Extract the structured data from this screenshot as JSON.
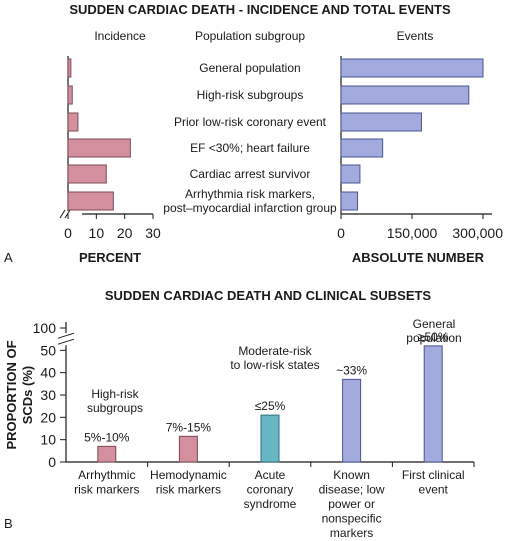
{
  "colors": {
    "pink": "#d4909e",
    "pink_stroke": "#7a4a55",
    "blue": "#a3aadd",
    "blue_stroke": "#4b5590",
    "teal": "#67b6c4",
    "teal_stroke": "#2e6f7b",
    "axis": "#1a1a1a"
  },
  "chart_data": [
    {
      "type": "bar",
      "orientation": "horizontal",
      "panel_label": "A",
      "title": "SUDDEN CARDIAC DEATH - INCIDENCE AND TOTAL EVENTS",
      "categories_header": "Population subgroup",
      "categories": [
        [
          "General population"
        ],
        [
          "High-risk subgroups"
        ],
        [
          "Prior low-risk coronary event"
        ],
        [
          "EF <30%; heart failure"
        ],
        [
          "Cardiac arrest survivor"
        ],
        [
          "Arrhythmia risk markers,",
          "post–myocardial infarction group"
        ]
      ],
      "series": [
        {
          "header": "Incidence",
          "xlabel": "PERCENT",
          "xlim": [
            0,
            30
          ],
          "ticks": [
            "0",
            "10",
            "20",
            "30"
          ],
          "tick_values": [
            0,
            10,
            20,
            30
          ],
          "axis_break": true,
          "values": [
            1,
            1.5,
            3.5,
            22,
            13.5,
            16
          ]
        },
        {
          "header": "Events",
          "xlabel": "ABSOLUTE NUMBER",
          "xlim": [
            0,
            300000
          ],
          "ticks": [
            "0",
            "150,000",
            "300,000"
          ],
          "tick_values": [
            0,
            150000,
            300000
          ],
          "values": [
            300000,
            270000,
            170000,
            88000,
            40000,
            35000
          ]
        }
      ]
    },
    {
      "type": "bar",
      "panel_label": "B",
      "title": "SUDDEN CARDIAC DEATH AND CLINICAL SUBSETS",
      "ylabel": [
        "PROPORTION OF",
        "SCDs (%)"
      ],
      "ylim": [
        0,
        60
      ],
      "yticks": [
        "0",
        "10",
        "20",
        "30",
        "40",
        "50",
        "100"
      ],
      "ytick_values": [
        0,
        10,
        20,
        30,
        40,
        50,
        60
      ],
      "axis_break": true,
      "categories": [
        [
          "Arrhythmic",
          "risk markers"
        ],
        [
          "Hemodynamic",
          "risk markers"
        ],
        [
          "Acute",
          "coronary",
          "syndrome"
        ],
        [
          "Known",
          "disease; low",
          "power or",
          "nonspecific",
          "markers"
        ],
        [
          "First clinical",
          "event"
        ]
      ],
      "values": [
        7,
        11.5,
        21,
        37,
        52
      ],
      "bar_colors": [
        "pink",
        "pink",
        "teal",
        "blue",
        "blue"
      ],
      "data_labels": [
        "5%-10%",
        "7%-15%",
        "≤25%",
        "~33%",
        "≥50%"
      ],
      "group_labels": [
        {
          "lines": [
            "High-risk",
            "subgroups"
          ],
          "covers": [
            0,
            1
          ]
        },
        {
          "lines": [
            "Moderate-risk",
            "to low-risk states"
          ],
          "covers": [
            2,
            3
          ]
        },
        {
          "lines": [
            "General",
            "population"
          ],
          "covers": [
            4
          ]
        }
      ]
    }
  ]
}
